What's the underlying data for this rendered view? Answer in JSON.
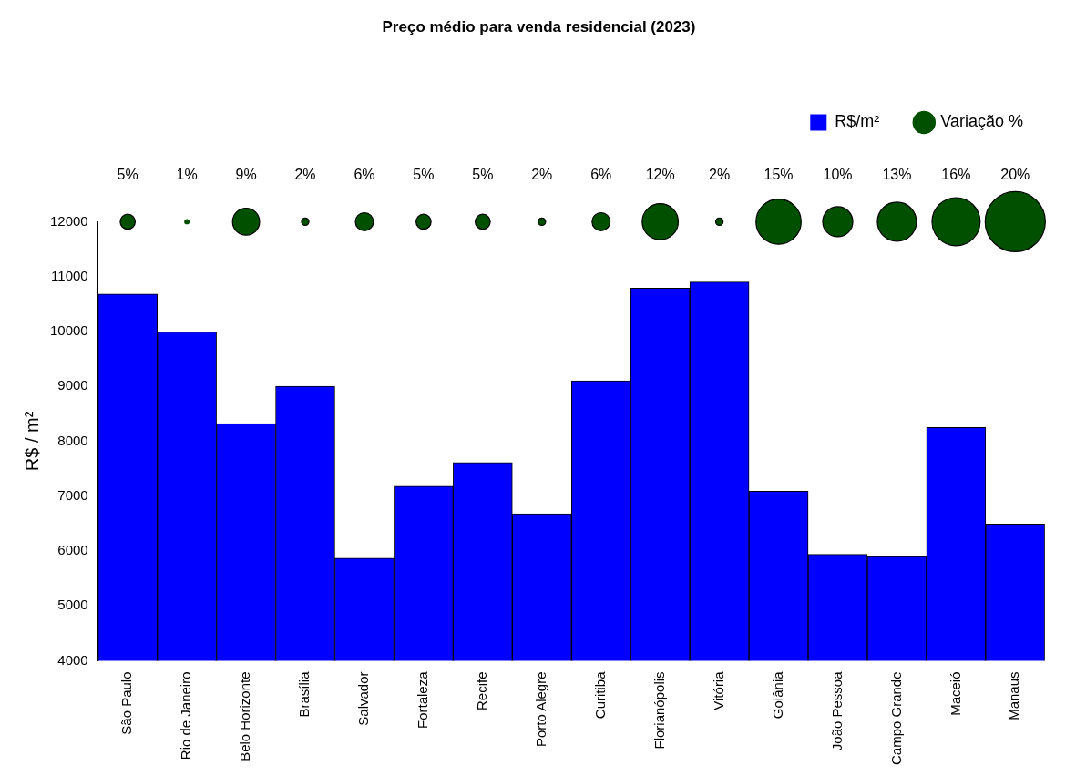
{
  "chart_data": {
    "type": "bar",
    "title": "Preço médio para venda residencial (2023)",
    "ylabel": "R$ / m²",
    "categories": [
      "São Paulo",
      "Rio de Janeiro",
      "Belo Horizonte",
      "Brasília",
      "Salvador",
      "Fortaleza",
      "Recife",
      "Porto Alegre",
      "Curitiba",
      "Florianópolis",
      "Vitória",
      "Goiânia",
      "João Pessoa",
      "Campo Grande",
      "Maceió",
      "Manaus"
    ],
    "series": [
      {
        "name": "R$/m²",
        "color": "#0000ff",
        "values": [
          10680,
          9990,
          8320,
          9000,
          5870,
          7180,
          7610,
          6680,
          9100,
          10790,
          10900,
          7090,
          5940,
          5900,
          8250,
          6490
        ]
      },
      {
        "name": "Variação %",
        "type": "bubble",
        "color": "#005000",
        "x": [
          "São Paulo",
          "Rio de Janeiro",
          "Belo Horizonte",
          "Brasília",
          "Salvador",
          "Fortaleza",
          "Recife",
          "Porto Alegre",
          "Curitiba",
          "Florianópolis",
          "Vitória",
          "Goiânia",
          "João Pessoa",
          "Campo Grande",
          "Maceió",
          "Manaus"
        ],
        "values": [
          12000,
          12000,
          12000,
          12000,
          12000,
          12000,
          12000,
          12000,
          12000,
          12000,
          12000,
          12000,
          12000,
          12000,
          12000,
          12000
        ],
        "sizes": [
          0.0625,
          0.008,
          0.2025,
          0.015,
          0.09,
          0.0625,
          0.0625,
          0.015,
          0.09,
          0.36,
          0.015,
          0.5625,
          0.25,
          0.4225,
          0.64,
          1
        ]
      }
    ],
    "annotations": [
      {
        "text": "5%",
        "x": "São Paulo",
        "y": 12000
      },
      {
        "text": "1%",
        "x": "Rio de Janeiro",
        "y": 12000
      },
      {
        "text": "9%",
        "x": "Belo Horizonte",
        "y": 12000
      },
      {
        "text": "2%",
        "x": "Brasília",
        "y": 12000
      },
      {
        "text": "6%",
        "x": "Salvador",
        "y": 12000
      },
      {
        "text": "5%",
        "x": "Fortaleza",
        "y": 12000
      },
      {
        "text": "5%",
        "x": "Recife",
        "y": 12000
      },
      {
        "text": "2%",
        "x": "Porto Alegre",
        "y": 12000
      },
      {
        "text": "6%",
        "x": "Curitiba",
        "y": 12000
      },
      {
        "text": "12%",
        "x": "Florianópolis",
        "y": 12000
      },
      {
        "text": "2%",
        "x": "Vitória",
        "y": 12000
      },
      {
        "text": "15%",
        "x": "Goiânia",
        "y": 12000
      },
      {
        "text": "10%",
        "x": "João Pessoa",
        "y": 12000
      },
      {
        "text": "13%",
        "x": "Campo Grande",
        "y": 12000
      },
      {
        "text": "16%",
        "x": "Maceió",
        "y": 12000
      },
      {
        "text": "20%",
        "x": "Manaus",
        "y": 12000
      }
    ],
    "ylim": [
      4000,
      12000
    ],
    "yticks": [
      4000,
      5000,
      6000,
      7000,
      8000,
      9000,
      10000,
      11000,
      12000
    ],
    "grid": false,
    "legend": "top right"
  }
}
